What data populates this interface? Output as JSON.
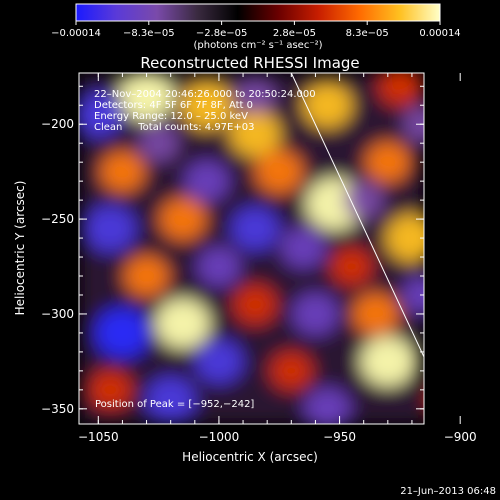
{
  "chart_data": {
    "type": "heatmap",
    "title": "Reconstructed RHESSI Image",
    "xlabel": "Heliocentric X (arcsec)",
    "ylabel": "Heliocentric Y (arcsec)",
    "xlim": [
      -1058,
      -915
    ],
    "ylim": [
      -358,
      -173
    ],
    "x_ticks": [
      -1050,
      -1000,
      -950,
      -900
    ],
    "x_tick_labels": [
      "−1050",
      "−1000",
      "−950",
      "−900"
    ],
    "y_ticks": [
      -200,
      -250,
      -300,
      -350
    ],
    "y_tick_labels": [
      "−200",
      "−250",
      "−300",
      "−350"
    ],
    "colorbar": {
      "min": -0.00014,
      "max": 0.00014,
      "tick_labels": [
        "−0.00014",
        "−8.3e−05",
        "−2.8e−05",
        "2.8e−05",
        "8.3e−05",
        "0.00014"
      ],
      "unit_label": "(photons cm⁻² s⁻¹ asec⁻²)",
      "colors": [
        "#1a1aff",
        "#5a3ad8",
        "#7a4aaa",
        "#3a2a40",
        "#000000",
        "#6a0000",
        "#c81e00",
        "#ff6a00",
        "#ffc020",
        "#ffffc8"
      ]
    },
    "annotations": [
      "22–Nov–2004 20:46:26.000 to 20:50:24.000",
      "Detectors: 4F 5F 6F 7F 8F, Att 0",
      "Energy Range: 12.0 – 25.0 keV",
      "Clean     Total counts: 4.97E+03"
    ],
    "peak_label": "Position of Peak = [−952,−242]",
    "peak": [
      -952,
      -242
    ],
    "limb_line": [
      [
        -970,
        -173
      ],
      [
        -902,
        -358
      ]
    ],
    "blobs": [
      {
        "x": -1030,
        "y": -185,
        "v": 0.9
      },
      {
        "x": -1005,
        "y": -190,
        "v": 0.85
      },
      {
        "x": -985,
        "y": -205,
        "v": 0.8
      },
      {
        "x": -955,
        "y": -190,
        "v": 0.75
      },
      {
        "x": -952,
        "y": -242,
        "v": 1.0
      },
      {
        "x": -975,
        "y": -225,
        "v": 0.7
      },
      {
        "x": -1040,
        "y": -225,
        "v": 0.6
      },
      {
        "x": -1015,
        "y": -250,
        "v": 0.65
      },
      {
        "x": -925,
        "y": -180,
        "v": 0.55
      },
      {
        "x": -930,
        "y": -220,
        "v": 0.6
      },
      {
        "x": -920,
        "y": -260,
        "v": 0.85
      },
      {
        "x": -945,
        "y": -275,
        "v": 0.5
      },
      {
        "x": -1030,
        "y": -280,
        "v": 0.6
      },
      {
        "x": -1015,
        "y": -305,
        "v": 0.9
      },
      {
        "x": -985,
        "y": -295,
        "v": 0.55
      },
      {
        "x": -935,
        "y": -300,
        "v": 0.65
      },
      {
        "x": -930,
        "y": -325,
        "v": 0.9
      },
      {
        "x": -970,
        "y": -330,
        "v": 0.5
      },
      {
        "x": -1045,
        "y": -340,
        "v": 0.55
      },
      {
        "x": -905,
        "y": -345,
        "v": 0.5
      },
      {
        "x": -1050,
        "y": -195,
        "v": -0.7
      },
      {
        "x": -1045,
        "y": -255,
        "v": -0.8
      },
      {
        "x": -1005,
        "y": -230,
        "v": -0.6
      },
      {
        "x": -985,
        "y": -255,
        "v": -0.7
      },
      {
        "x": -1000,
        "y": -275,
        "v": -0.55
      },
      {
        "x": -965,
        "y": -265,
        "v": -0.6
      },
      {
        "x": -1040,
        "y": -310,
        "v": -0.9
      },
      {
        "x": -1000,
        "y": -325,
        "v": -0.7
      },
      {
        "x": -960,
        "y": -300,
        "v": -0.65
      },
      {
        "x": -940,
        "y": -240,
        "v": -0.45
      },
      {
        "x": -915,
        "y": -200,
        "v": -0.5
      },
      {
        "x": -915,
        "y": -290,
        "v": -0.55
      },
      {
        "x": -1020,
        "y": -345,
        "v": -0.75
      },
      {
        "x": -955,
        "y": -350,
        "v": -0.65
      },
      {
        "x": -985,
        "y": -185,
        "v": -0.4
      },
      {
        "x": -1025,
        "y": -210,
        "v": -0.45
      }
    ]
  },
  "footer": {
    "timestamp": "21–Jun–2013 06:48"
  }
}
